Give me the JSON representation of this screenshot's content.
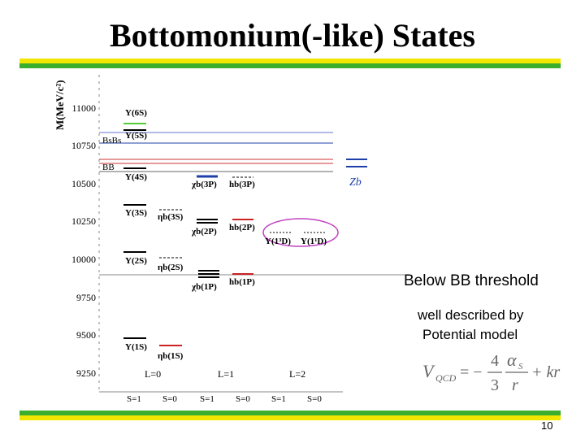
{
  "slide": {
    "title": "Bottomonium(-like) States",
    "page_number": "10",
    "note_threshold": "Below BB threshold",
    "note_line1": "well described by",
    "note_line2": "Potential model",
    "formula_lhs": "V",
    "formula_lhs_sub": "QCD",
    "formula_eq": "= −",
    "formula_num": "4",
    "formula_den": "3",
    "formula_alpha": "α",
    "formula_alpha_sub": "S",
    "formula_r": "r",
    "formula_tail": "+ kr"
  },
  "chart": {
    "ylabel": "M(MeV/c²)",
    "yticks": [
      "11000",
      "10750",
      "10500",
      "10250",
      "10000",
      "9750",
      "9500",
      "9250"
    ],
    "thresholds": [
      "BsBs",
      "BB"
    ],
    "zb_label": "Zb",
    "x_groups": [
      "L=0",
      "L=1",
      "L=2"
    ],
    "x_spins": [
      "S=1",
      "S=0",
      "S=1",
      "S=0",
      "S=1",
      "S=0"
    ],
    "state_labels": [
      "Υ(6S)",
      "Υ(5S)",
      "Υ(4S)",
      "Υ(3S)",
      "ηb(3S)",
      "Υ(2S)",
      "ηb(2S)",
      "Υ(1S)",
      "ηb(1S)",
      "χb(3P)",
      "hb(3P)",
      "χb(2P)",
      "hb(2P)",
      "χb(1P)",
      "hb(1P)",
      "Υ(1³D)",
      "Υ(1¹D)"
    ],
    "colors": {
      "measured": "#000000",
      "observed_new": "#cc2222",
      "blue": "#1f3fa8",
      "green": "#55cc33",
      "ellipse": "#c040c0"
    }
  }
}
